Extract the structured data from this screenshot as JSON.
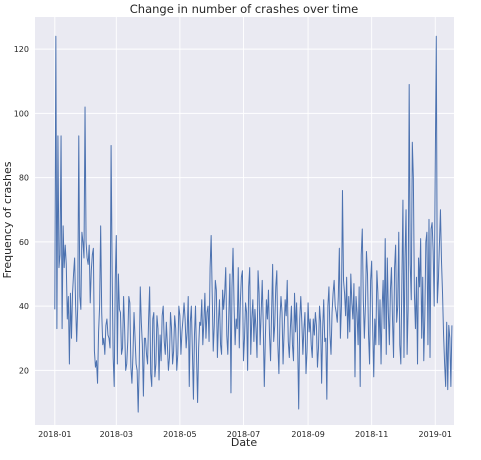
{
  "chart_data": {
    "type": "line",
    "title": "Change in number of crashes over time",
    "xlabel": "Date",
    "ylabel": "Frequency of crashes",
    "x_ticks": [
      {
        "date": "2018-01-01",
        "label": "2018-01"
      },
      {
        "date": "2018-03-01",
        "label": "2018-03"
      },
      {
        "date": "2018-05-01",
        "label": "2018-05"
      },
      {
        "date": "2018-07-01",
        "label": "2018-07"
      },
      {
        "date": "2018-09-01",
        "label": "2018-09"
      },
      {
        "date": "2018-11-01",
        "label": "2018-11"
      },
      {
        "date": "2019-01-01",
        "label": "2019-01"
      }
    ],
    "y_ticks": [
      20,
      40,
      60,
      80,
      100,
      120
    ],
    "xlim": [
      "2017-12-13",
      "2019-01-19"
    ],
    "ylim": [
      3,
      130
    ],
    "grid": true,
    "colors": {
      "line": "#4c72b0",
      "plot_background": "#eaeaf2",
      "grid": "#ffffff",
      "text": "#262626"
    },
    "series": [
      {
        "start_date": "2018-01-01",
        "frequency": "daily",
        "values": [
          39,
          124,
          33,
          93,
          52,
          56,
          93,
          33,
          65,
          52,
          59,
          53,
          36,
          43,
          22,
          44,
          30,
          44,
          50,
          55,
          40,
          29,
          40,
          93,
          43,
          39,
          63,
          60,
          55,
          102,
          60,
          55,
          53,
          59,
          41,
          51,
          56,
          58,
          26,
          21,
          23,
          16,
          32,
          40,
          65,
          38,
          28,
          30,
          25,
          34,
          36,
          31,
          30,
          27,
          90,
          51,
          24,
          15,
          48,
          62,
          22,
          50,
          39,
          38,
          25,
          27,
          43,
          33,
          20,
          22,
          29,
          43,
          41,
          21,
          16,
          25,
          38,
          30,
          22,
          20,
          7,
          22,
          46,
          35,
          28,
          12,
          30,
          30,
          25,
          22,
          36,
          46,
          19,
          15,
          36,
          38,
          18,
          22,
          37,
          33,
          17,
          31,
          23,
          37,
          40,
          29,
          25,
          35,
          28,
          20,
          24,
          38,
          33,
          22,
          26,
          37,
          33,
          20,
          25,
          40,
          37,
          25,
          32,
          36,
          41,
          36,
          27,
          32,
          43,
          15,
          35,
          40,
          26,
          11,
          31,
          40,
          24,
          10,
          27,
          35,
          34,
          42,
          28,
          35,
          44,
          30,
          38,
          40,
          29,
          52,
          62,
          44,
          26,
          34,
          48,
          45,
          24,
          35,
          42,
          28,
          25,
          45,
          39,
          44,
          52,
          31,
          25,
          38,
          50,
          13,
          46,
          58,
          40,
          28,
          36,
          33,
          52,
          27,
          41,
          49,
          51,
          23,
          30,
          41,
          38,
          20,
          46,
          52,
          25,
          36,
          42,
          29,
          39,
          33,
          24,
          51,
          44,
          28,
          38,
          48,
          34,
          15,
          30,
          42,
          36,
          45,
          31,
          23,
          38,
          53,
          29,
          34,
          46,
          51,
          28,
          19,
          36,
          43,
          38,
          22,
          32,
          42,
          37,
          48,
          29,
          24,
          33,
          40,
          28,
          23,
          44,
          32,
          41,
          28,
          8,
          36,
          43,
          35,
          25,
          33,
          38,
          19,
          26,
          41,
          32,
          36,
          28,
          24,
          36,
          31,
          38,
          34,
          21,
          27,
          40,
          35,
          16,
          33,
          42,
          29,
          30,
          11,
          40,
          46,
          31,
          25,
          38,
          44,
          48,
          40,
          38,
          35,
          43,
          58,
          30,
          40,
          76,
          48,
          44,
          37,
          49,
          30,
          43,
          32,
          50,
          41,
          36,
          47,
          18,
          43,
          38,
          28,
          46,
          15,
          56,
          64,
          42,
          30,
          40,
          57,
          50,
          31,
          22,
          48,
          54,
          33,
          18,
          36,
          28,
          51,
          44,
          28,
          42,
          22,
          39,
          48,
          33,
          61,
          25,
          55,
          38,
          28,
          45,
          52,
          36,
          24,
          52,
          59,
          35,
          40,
          63,
          28,
          22,
          48,
          73,
          24,
          55,
          70,
          25,
          39,
          109,
          53,
          42,
          91,
          80,
          44,
          33,
          49,
          22,
          55,
          46,
          61,
          30,
          49,
          23,
          37,
          60,
          63,
          28,
          67,
          24,
          64,
          66,
          57,
          40,
          83,
          124,
          41,
          48,
          59,
          70,
          54,
          44,
          31,
          22,
          15,
          35,
          14,
          34,
          30,
          15,
          34
        ]
      }
    ]
  }
}
